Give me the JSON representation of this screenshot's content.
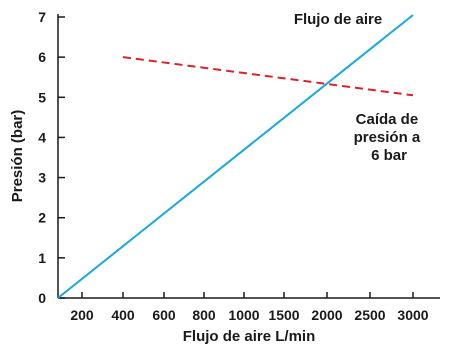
{
  "chart_data": {
    "type": "line",
    "xlabel": "Flujo de aire L/min",
    "ylabel": "Presión (bar)",
    "xlim": [
      100,
      3000
    ],
    "ylim": [
      0,
      7
    ],
    "x_ticks": [
      200,
      400,
      600,
      800,
      1000,
      1500,
      2000,
      2500,
      3000
    ],
    "y_ticks": [
      0,
      1,
      2,
      3,
      4,
      5,
      6,
      7
    ],
    "grid": false,
    "legend": "none",
    "series": [
      {
        "name": "Flujo de aire",
        "style": "solid",
        "color": "#1aa7e0",
        "points": [
          [
            100,
            0
          ],
          [
            3000,
            7.05
          ]
        ]
      },
      {
        "name": "Caída de presión a 6 bar",
        "style": "dashed",
        "color": "#d8232a",
        "points": [
          [
            400,
            6.0
          ],
          [
            3000,
            5.05
          ]
        ]
      }
    ],
    "annotations": [
      {
        "lines": [
          "Flujo de aire"
        ],
        "series": 0
      },
      {
        "lines": [
          "Caída de",
          "presión a",
          "6 bar"
        ],
        "series": 1
      }
    ]
  }
}
